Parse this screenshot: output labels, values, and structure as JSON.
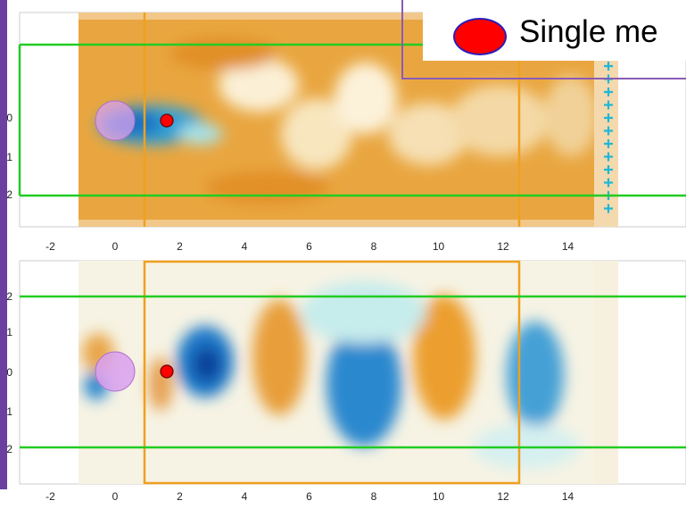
{
  "legend": {
    "label": "Single me",
    "marker_color": "#ff0000",
    "marker_edge": "#2b1db8"
  },
  "colors": {
    "orange_box": "#f0a020",
    "green_box": "#22cc22",
    "sidebar": "#6a3fa0",
    "warm": "#e8a23a",
    "cold": "#1f78c8",
    "point": "#ff0000",
    "cylinder": "#d9a0ee"
  },
  "chart_data": [
    {
      "type": "heatmap",
      "panel": "top",
      "x_ticks": [
        "-2",
        "0",
        "2",
        "4",
        "6",
        "8",
        "10",
        "12",
        "14"
      ],
      "y_ticks": [
        "0",
        "1",
        "2"
      ],
      "xlim": [
        -2.6,
        14.6
      ],
      "ylim": [
        -2.3,
        2.7
      ],
      "field_extent_x": [
        -1,
        13
      ],
      "cylinder": {
        "x": 0,
        "y": 0,
        "r": 0.5
      },
      "sensor_point": {
        "x": 1.3,
        "y": 0
      },
      "orange_box": {
        "x": [
          0.75,
          10.45
        ],
        "y": [
          -2.3,
          2.7
        ]
      },
      "green_box": {
        "x": [
          -2.6,
          14.6
        ],
        "y": [
          -2,
          2
        ]
      }
    },
    {
      "type": "heatmap",
      "panel": "bottom",
      "x_ticks": [
        "-2",
        "0",
        "2",
        "4",
        "6",
        "8",
        "10",
        "12",
        "14"
      ],
      "y_ticks": [
        "2",
        "1",
        "0",
        "1",
        "2"
      ],
      "xlim": [
        -2.6,
        14.6
      ],
      "ylim": [
        -2.7,
        2.7
      ],
      "field_extent_x": [
        -1,
        13
      ],
      "cylinder": {
        "x": 0,
        "y": 0,
        "r": 0.5
      },
      "sensor_point": {
        "x": 1.3,
        "y": 0
      },
      "orange_box": {
        "x": [
          0.75,
          10.45
        ],
        "y": [
          -2.7,
          2.7
        ]
      },
      "green_box": {
        "x": [
          -2.6,
          14.6
        ],
        "y": [
          -2,
          2
        ]
      }
    }
  ]
}
